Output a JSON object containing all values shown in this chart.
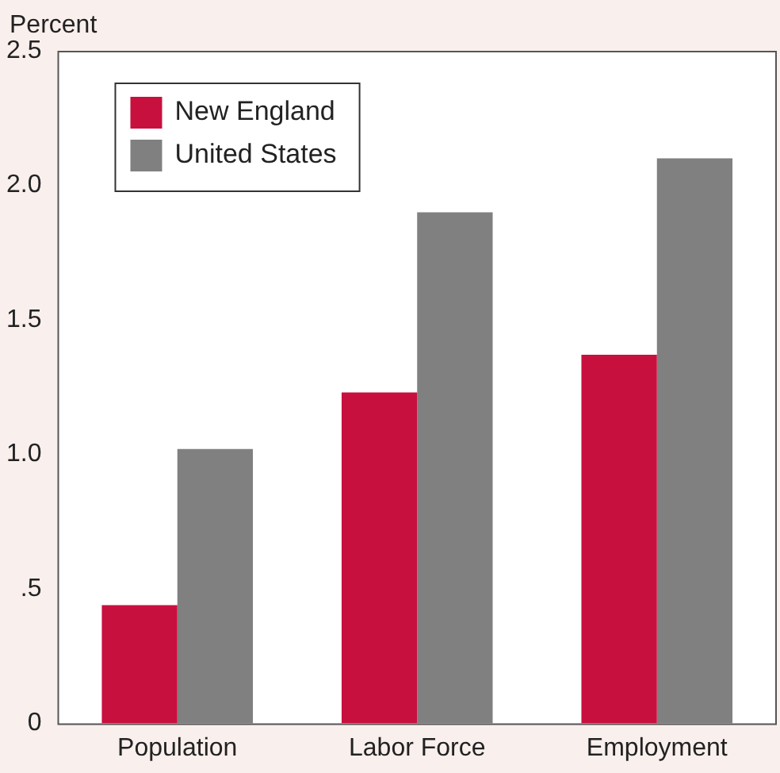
{
  "chart_data": {
    "type": "bar",
    "ylabel": "Percent",
    "categories": [
      "Population",
      "Labor Force",
      "Employment"
    ],
    "series": [
      {
        "name": "New England",
        "color": "#c8103e",
        "values": [
          0.44,
          1.23,
          1.37
        ]
      },
      {
        "name": "United States",
        "color": "#808080",
        "values": [
          1.02,
          1.9,
          2.1
        ]
      }
    ],
    "ylim": [
      0,
      2.5
    ],
    "yticks": [
      0,
      {
        "value": 0.5,
        "label": ".5"
      },
      {
        "value": 1,
        "label": "1.0"
      },
      1.5,
      {
        "value": 2,
        "label": "2.0"
      },
      2.5
    ],
    "grid": false,
    "legend": "top left"
  }
}
